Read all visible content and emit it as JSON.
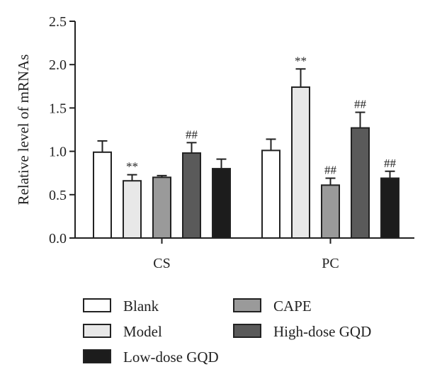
{
  "chart_data": {
    "type": "bar",
    "ylabel": "Relative level of mRNAs",
    "ylim": [
      0,
      2.5
    ],
    "yticks": [
      "0.0",
      "0.5",
      "1.0",
      "1.5",
      "2.0",
      "2.5"
    ],
    "categories": [
      "CS",
      "PC"
    ],
    "series": [
      {
        "name": "Blank",
        "color": "#ffffff",
        "values": [
          0.99,
          1.01
        ],
        "errors": [
          0.13,
          0.13
        ],
        "annotations": [
          "",
          ""
        ]
      },
      {
        "name": "Model",
        "color": "#e8e8e8",
        "values": [
          0.66,
          1.74
        ],
        "errors": [
          0.07,
          0.21
        ],
        "annotations": [
          "**",
          "**"
        ]
      },
      {
        "name": "CAPE",
        "color": "#9a9a9a",
        "values": [
          0.7,
          0.61
        ],
        "errors": [
          0.02,
          0.08
        ],
        "annotations": [
          "",
          "##"
        ]
      },
      {
        "name": "High-dose GQD",
        "color": "#5a5a5a",
        "values": [
          0.98,
          1.27
        ],
        "errors": [
          0.12,
          0.18
        ],
        "annotations": [
          "##",
          "##"
        ]
      },
      {
        "name": "Low-dose GQD",
        "color": "#1c1c1c",
        "values": [
          0.8,
          0.69
        ],
        "errors": [
          0.11,
          0.08
        ],
        "annotations": [
          "",
          "##"
        ]
      }
    ],
    "legend_order": [
      "Blank",
      "CAPE",
      "Model",
      "High-dose GQD",
      "Low-dose GQD"
    ],
    "legend_position": "bottom",
    "grid": false
  }
}
